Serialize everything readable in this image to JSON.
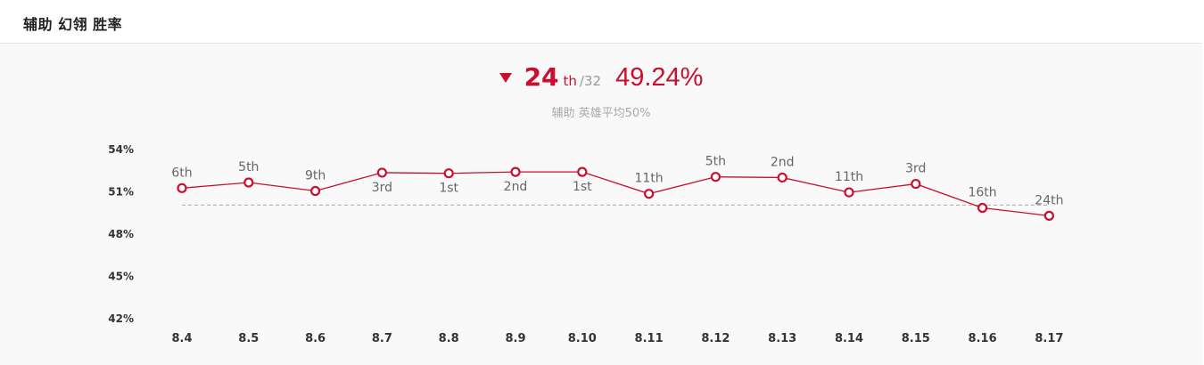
{
  "header": {
    "title": "辅助 幻翎 胜率"
  },
  "summary": {
    "rank": "24",
    "rank_suffix": "th",
    "rank_total": "/32",
    "win_rate": "49.24%",
    "subtitle": "辅助 英雄平均50%",
    "trend": "down"
  },
  "colors": {
    "accent": "#c8102e",
    "average_line": "#aaaaaa",
    "background": "#f9f9f9"
  },
  "chart_data": {
    "type": "line",
    "title": "",
    "xlabel": "",
    "ylabel": "",
    "ylim": [
      42,
      54
    ],
    "yticks": [
      54,
      51,
      48,
      45,
      42
    ],
    "ytick_labels": [
      "54%",
      "51%",
      "48%",
      "45%",
      "42%"
    ],
    "grid": false,
    "reference_line": 50,
    "categories": [
      "8.4",
      "8.5",
      "8.6",
      "8.7",
      "8.8",
      "8.9",
      "8.10",
      "8.11",
      "8.12",
      "8.13",
      "8.14",
      "8.15",
      "8.16",
      "8.17"
    ],
    "series": [
      {
        "values": [
          51.2,
          51.6,
          51.0,
          52.3,
          52.25,
          52.35,
          52.35,
          50.8,
          52.0,
          51.95,
          50.9,
          51.5,
          49.8,
          49.24
        ],
        "rank_labels": [
          "6th",
          "5th",
          "9th",
          "3rd",
          "1st",
          "2nd",
          "1st",
          "11th",
          "5th",
          "2nd",
          "11th",
          "3rd",
          "16th",
          "24th"
        ],
        "label_positions": [
          "above",
          "above",
          "above",
          "below",
          "below",
          "below",
          "below",
          "above",
          "above",
          "above",
          "above",
          "above",
          "above",
          "above"
        ]
      }
    ]
  }
}
